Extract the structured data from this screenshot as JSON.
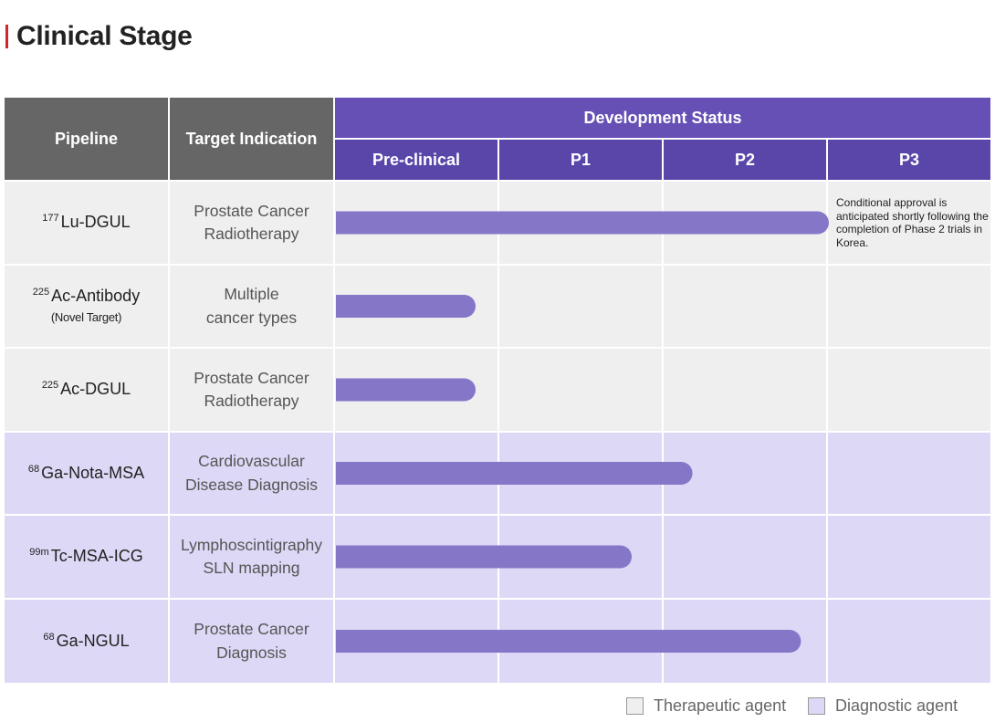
{
  "page": {
    "title": "Clinical Stage"
  },
  "header": {
    "pipeline": "Pipeline",
    "target": "Target Indication",
    "dev_status": "Development Status",
    "phases": [
      "Pre-clinical",
      "P1",
      "P2",
      "P3"
    ]
  },
  "legend": {
    "therapeutic": "Therapeutic agent",
    "diagnostic": "Diagnostic agent"
  },
  "colors": {
    "therapeutic_bg": "#efefef",
    "diagnostic_bg": "#dcd8f6",
    "bar": "#8676c8",
    "header_dark": "#666666",
    "header_purple": "#6650b5"
  },
  "rows": [
    {
      "iso": "177",
      "name": "Lu-DGUL",
      "sub": "",
      "ind1": "Prostate Cancer",
      "ind2": "Radiotherapy"
    },
    {
      "iso": "225",
      "name": "Ac-Antibody",
      "sub": "(Novel Target)",
      "ind1": "Multiple",
      "ind2": "cancer types"
    },
    {
      "iso": "225",
      "name": "Ac-DGUL",
      "sub": "",
      "ind1": "Prostate Cancer",
      "ind2": "Radiotherapy"
    },
    {
      "iso": "68",
      "name": "Ga-Nota-MSA",
      "sub": "",
      "ind1": "Cardiovascular",
      "ind2": "Disease Diagnosis"
    },
    {
      "iso": "99m",
      "name": "Tc-MSA-ICG",
      "sub": "",
      "ind1": "Lymphoscintigraphy",
      "ind2": "SLN mapping"
    },
    {
      "iso": "68",
      "name": "Ga-NGUL",
      "sub": "",
      "ind1": "Prostate Cancer",
      "ind2": "Diagnosis"
    }
  ],
  "note": "Conditional approval is anticipated shortly following the completion of Phase 2 trials in Korea.",
  "chart_data": {
    "type": "bar",
    "orientation": "horizontal",
    "x_axis": "Development Status",
    "phases": [
      "Pre-clinical",
      "P1",
      "P2",
      "P3"
    ],
    "xlim": [
      0,
      4
    ],
    "categories": [
      "177Lu-DGUL",
      "225Ac-Antibody (Novel Target)",
      "225Ac-DGUL",
      "68Ga-Nota-MSA",
      "99mTc-MSA-ICG",
      "68Ga-NGUL"
    ],
    "values": [
      3.0,
      0.85,
      0.85,
      2.17,
      1.8,
      2.83
    ],
    "groups": [
      "therapeutic",
      "therapeutic",
      "therapeutic",
      "diagnostic",
      "diagnostic",
      "diagnostic"
    ],
    "legend_position": "bottom-right"
  }
}
